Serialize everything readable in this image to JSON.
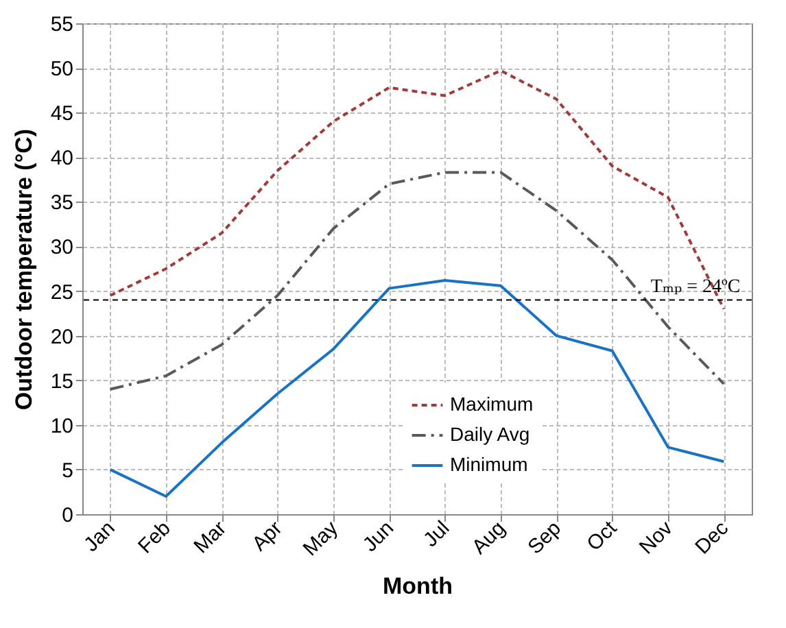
{
  "chart_data": {
    "type": "line",
    "xlabel": "Month",
    "ylabel": "Outdoor temperature (°C)",
    "categories": [
      "Jan",
      "Feb",
      "Mar",
      "Apr",
      "May",
      "Jun",
      "Jul",
      "Aug",
      "Sep",
      "Oct",
      "Nov",
      "Dec"
    ],
    "ylim": [
      0,
      55
    ],
    "yticks": [
      0,
      5,
      10,
      15,
      20,
      25,
      30,
      35,
      40,
      45,
      50,
      55
    ],
    "grid": true,
    "legend": "bottom right",
    "series": [
      {
        "name": "Maximum",
        "color": "#a33a3a",
        "line_style": "dashed",
        "values": [
          24.5,
          27.5,
          31.5,
          38.5,
          44,
          47.8,
          46.9,
          49.7,
          46.5,
          39,
          35.5,
          23
        ]
      },
      {
        "name": "Daily Avg",
        "color": "#595959",
        "line_style": "dashdot",
        "values": [
          14,
          15.5,
          19,
          24.5,
          32,
          37,
          38.3,
          38.3,
          34,
          28.5,
          21,
          14.6
        ]
      },
      {
        "name": "Minimum",
        "color": "#1a72c4",
        "line_style": "solid",
        "values": [
          5,
          2,
          8,
          13.5,
          18.5,
          25.3,
          26.2,
          25.6,
          20,
          18.3,
          7.5,
          5.9
        ]
      }
    ],
    "ref_lines": [
      {
        "axis": "y",
        "value": 24,
        "label": "Tₘₚ = 24ºC",
        "color": "#000000",
        "line_style": "dashed"
      }
    ]
  }
}
